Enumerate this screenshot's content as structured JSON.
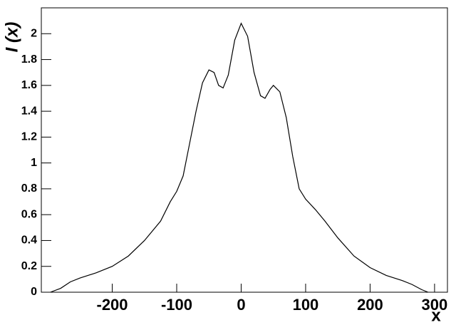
{
  "chart_data": {
    "type": "line",
    "x_label": "x",
    "y_label": "I (x)",
    "x": [
      -296,
      -280,
      -265,
      -250,
      -225,
      -200,
      -175,
      -150,
      -125,
      -110,
      -100,
      -90,
      -80,
      -70,
      -60,
      -50,
      -42,
      -35,
      -28,
      -20,
      -10,
      0,
      10,
      20,
      30,
      37,
      45,
      50,
      60,
      70,
      80,
      90,
      100,
      115,
      130,
      150,
      175,
      200,
      225,
      250,
      265,
      280,
      290
    ],
    "series": [
      {
        "color": "#000000",
        "values": [
          0.0,
          0.03,
          0.08,
          0.11,
          0.15,
          0.2,
          0.28,
          0.4,
          0.55,
          0.7,
          0.78,
          0.9,
          1.15,
          1.4,
          1.62,
          1.72,
          1.7,
          1.6,
          1.58,
          1.68,
          1.95,
          2.08,
          1.98,
          1.7,
          1.52,
          1.5,
          1.57,
          1.6,
          1.55,
          1.35,
          1.05,
          0.8,
          0.72,
          0.64,
          0.55,
          0.42,
          0.28,
          0.19,
          0.13,
          0.09,
          0.06,
          0.02,
          0.0
        ]
      }
    ],
    "xlim": [
      -310,
      320
    ],
    "ylim": [
      0,
      2.2
    ],
    "xticks": [
      -200,
      -100,
      0,
      100,
      200,
      300
    ],
    "yticks": [
      0,
      0.2,
      0.4,
      0.6,
      0.8,
      1,
      1.2,
      1.4,
      1.6,
      1.8,
      2
    ]
  }
}
